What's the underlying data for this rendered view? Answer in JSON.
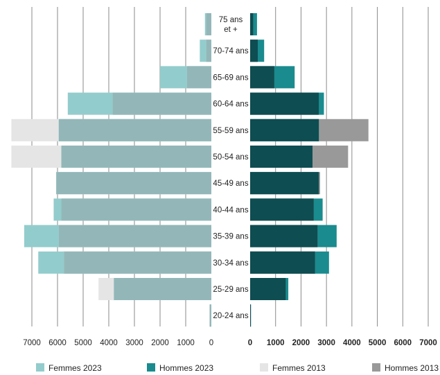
{
  "chart_data": {
    "type": "bar",
    "orientation": "horizontal-population-pyramid",
    "categories": [
      "75 ans\net +",
      "70-74 ans",
      "65-69 ans",
      "60-64 ans",
      "55-59 ans",
      "50-54 ans",
      "45-49 ans",
      "40-44 ans",
      "35-39 ans",
      "30-34 ans",
      "25-29 ans",
      "20-24 ans"
    ],
    "left_axis_ticks": [
      "7000",
      "6000",
      "5000",
      "4000",
      "3000",
      "2000",
      "1000",
      "0"
    ],
    "right_axis_ticks": [
      "0",
      "1000",
      "2000",
      "3000",
      "4000",
      "5000",
      "6000",
      "7000"
    ],
    "xlim": [
      0,
      7000
    ],
    "grid": true,
    "legend_position": "bottom",
    "series": [
      {
        "name": "Femmes 2023",
        "side": "left",
        "color": "#93cccc",
        "values": [
          250,
          450,
          2000,
          5600,
          5950,
          5850,
          6050,
          6150,
          7300,
          6750,
          3800,
          60
        ]
      },
      {
        "name": "Hommes 2023",
        "side": "right",
        "color": "#1a8b8e",
        "values": [
          270,
          550,
          1750,
          2900,
          2700,
          2450,
          2700,
          2850,
          3400,
          3100,
          1500,
          30
        ]
      },
      {
        "name": "Femmes 2013",
        "side": "left",
        "color": "#e5e5e5",
        "values": [
          200,
          200,
          950,
          3850,
          7800,
          7800,
          6050,
          5850,
          5950,
          5750,
          4400,
          80
        ]
      },
      {
        "name": "Hommes 2013",
        "side": "right",
        "color": "#999999",
        "values": [
          120,
          300,
          950,
          2700,
          4650,
          3850,
          2750,
          2500,
          2650,
          2550,
          1400,
          30
        ]
      }
    ]
  }
}
